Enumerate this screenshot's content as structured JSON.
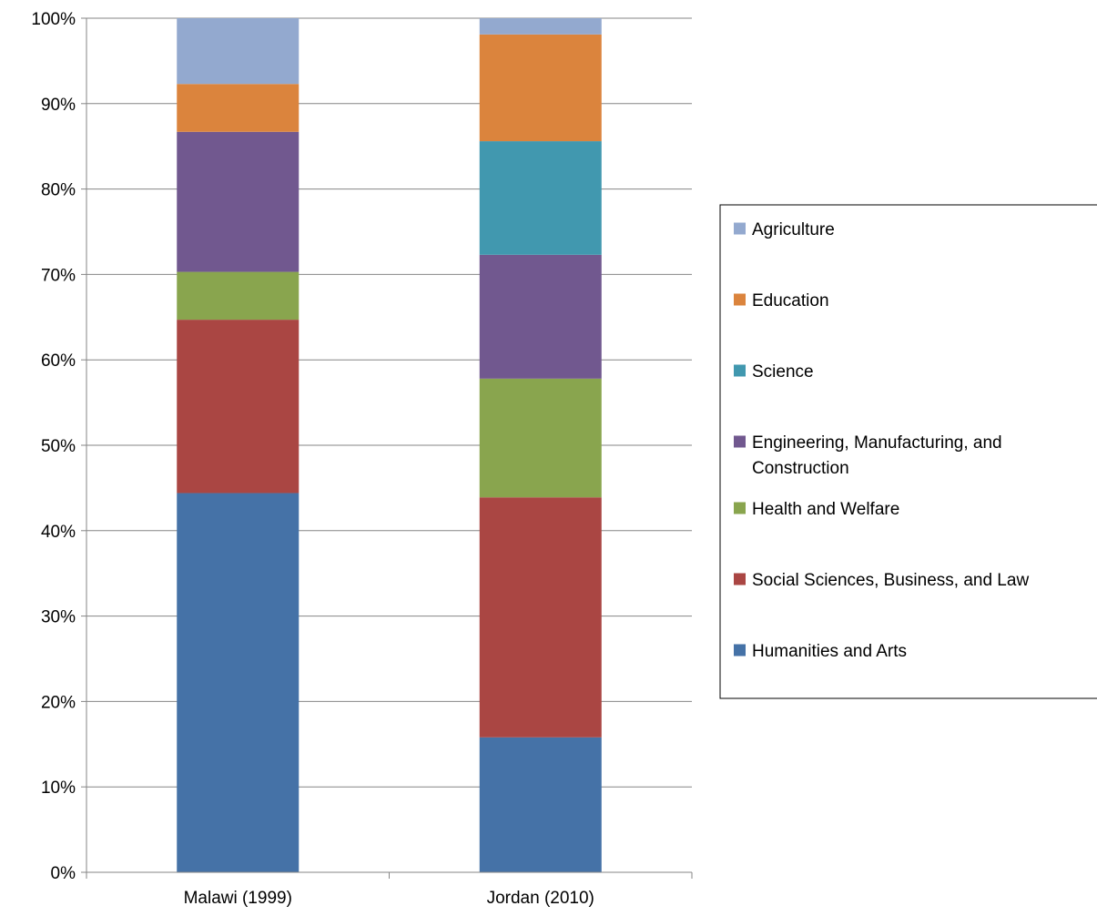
{
  "chart_data": {
    "type": "bar",
    "stacked": true,
    "percent_stacked": true,
    "categories": [
      "Malawi (1999)",
      "Jordan (2010)"
    ],
    "y_ticks": [
      "0%",
      "10%",
      "20%",
      "30%",
      "40%",
      "50%",
      "60%",
      "70%",
      "80%",
      "90%",
      "100%"
    ],
    "ylim": [
      0,
      100
    ],
    "grid": true,
    "legend_position": "right",
    "series": [
      {
        "name": "Humanities and Arts",
        "color": "#4572a7",
        "values": [
          44.4,
          15.8
        ]
      },
      {
        "name": "Social Sciences, Business, and Law",
        "color": "#aa4643",
        "values": [
          20.3,
          28.1
        ]
      },
      {
        "name": "Health and Welfare",
        "color": "#89a54e",
        "values": [
          5.6,
          13.9
        ]
      },
      {
        "name": "Engineering, Manufacturing, and Construction",
        "color": "#71588f",
        "values": [
          16.4,
          14.5
        ]
      },
      {
        "name": "Science",
        "color": "#4198af",
        "values": [
          0.0,
          13.3
        ]
      },
      {
        "name": "Education",
        "color": "#db843d",
        "values": [
          5.6,
          12.5
        ]
      },
      {
        "name": "Agriculture",
        "color": "#93a9cf",
        "values": [
          7.7,
          1.9
        ]
      }
    ]
  }
}
